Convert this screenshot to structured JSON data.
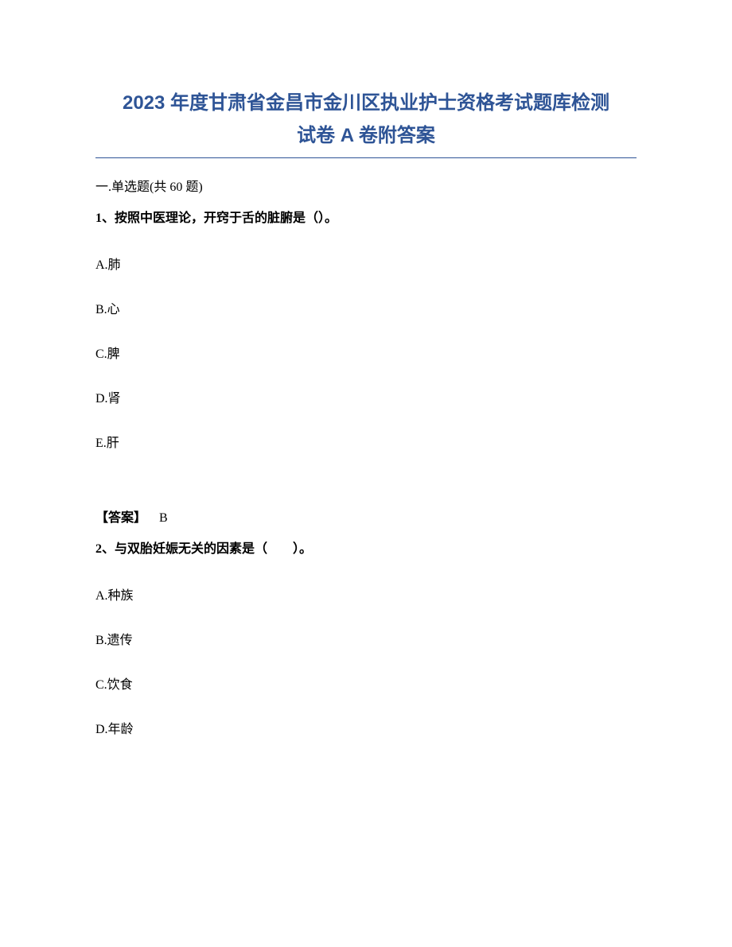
{
  "title_line1": "2023 年度甘肃省金昌市金川区执业护士资格考试题库检测",
  "title_line2": "试卷 A 卷附答案",
  "section_header": "一.单选题(共 60 题)",
  "q1": {
    "stem": "1、按照中医理论，开窍于舌的脏腑是（）。",
    "options": {
      "A": "A.肺",
      "B": "B.心",
      "C": "C.脾",
      "D": "D.肾",
      "E": "E.肝"
    },
    "answer_label": "【答案】",
    "answer_value": "B"
  },
  "q2": {
    "stem": "2、与双胎妊娠无关的因素是（　　）。",
    "options": {
      "A": "A.种族",
      "B": "B.遗传",
      "C": "C.饮食",
      "D": "D.年龄"
    }
  }
}
